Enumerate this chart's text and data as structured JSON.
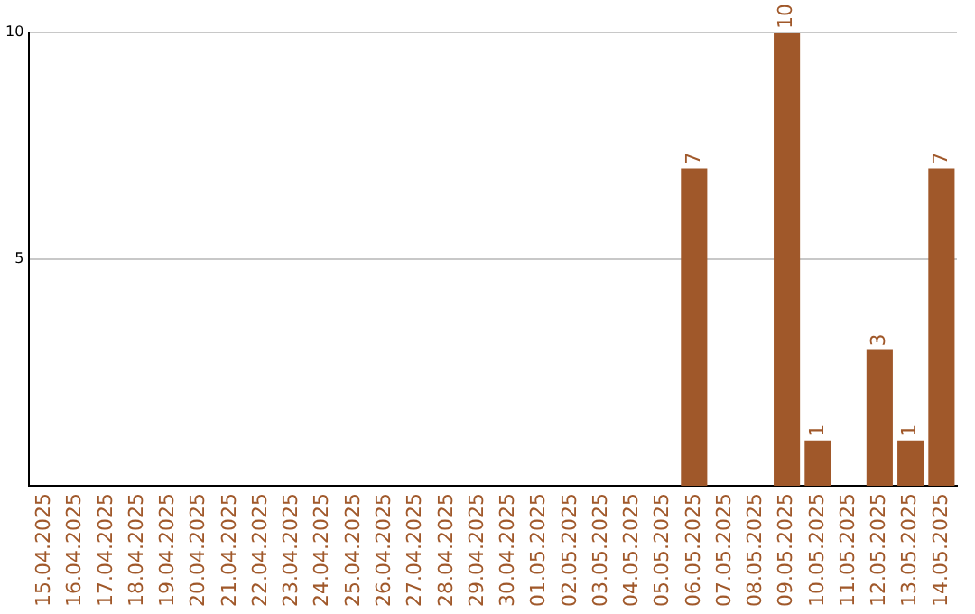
{
  "chart_data": {
    "type": "bar",
    "categories": [
      "15.04.2025",
      "16.04.2025",
      "17.04.2025",
      "18.04.2025",
      "19.04.2025",
      "20.04.2025",
      "21.04.2025",
      "22.04.2025",
      "23.04.2025",
      "24.04.2025",
      "25.04.2025",
      "26.04.2025",
      "27.04.2025",
      "28.04.2025",
      "29.04.2025",
      "30.04.2025",
      "01.05.2025",
      "02.05.2025",
      "03.05.2025",
      "04.05.2025",
      "05.05.2025",
      "06.05.2025",
      "07.05.2025",
      "08.05.2025",
      "09.05.2025",
      "10.05.2025",
      "11.05.2025",
      "12.05.2025",
      "13.05.2025",
      "14.05.2025"
    ],
    "values": [
      0,
      0,
      0,
      0,
      0,
      0,
      0,
      0,
      0,
      0,
      0,
      0,
      0,
      0,
      0,
      0,
      0,
      0,
      0,
      0,
      0,
      7,
      0,
      0,
      10,
      1,
      0,
      3,
      1,
      7
    ],
    "value_labels": [
      null,
      null,
      null,
      null,
      null,
      null,
      null,
      null,
      null,
      null,
      null,
      null,
      null,
      null,
      null,
      null,
      null,
      null,
      null,
      null,
      null,
      "7",
      null,
      null,
      "10",
      "1",
      null,
      "3",
      "1",
      "7"
    ],
    "color": "#a0582a",
    "ylim": [
      0,
      10
    ],
    "yticks": [
      5,
      10
    ],
    "grid": "y",
    "legend": false
  }
}
